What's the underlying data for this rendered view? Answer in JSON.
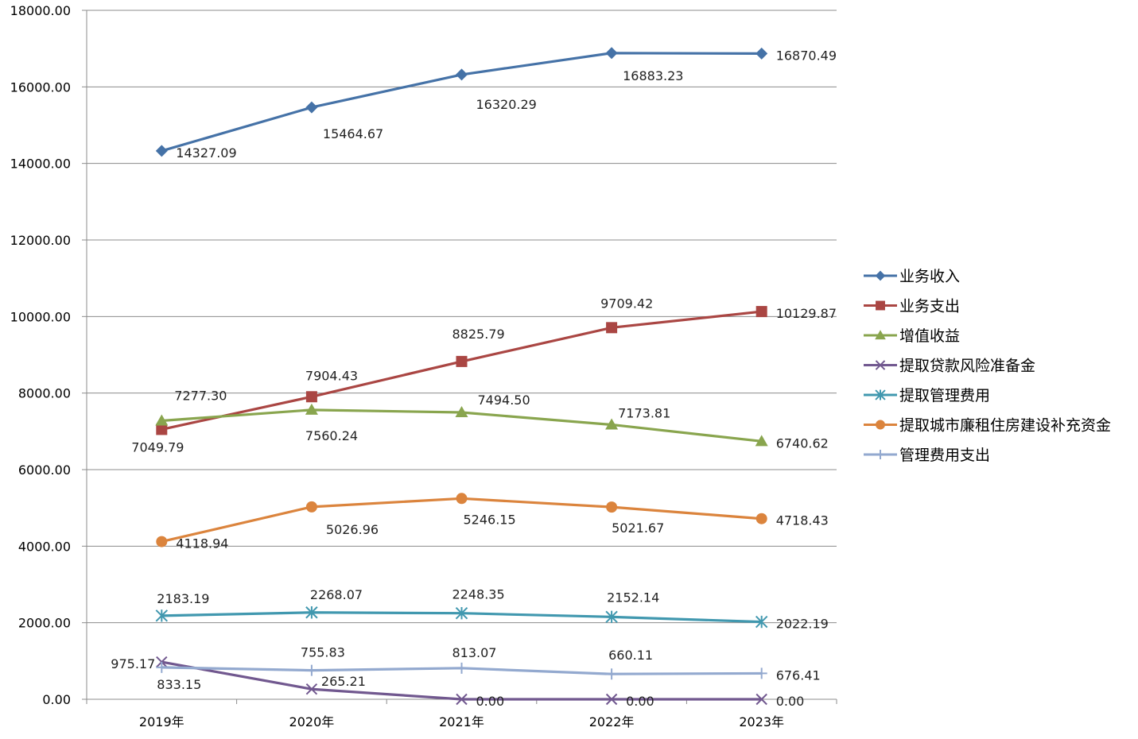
{
  "chart_data": {
    "type": "line",
    "categories": [
      "2019年",
      "2020年",
      "2021年",
      "2022年",
      "2023年"
    ],
    "ylim": [
      0,
      18000
    ],
    "yticks": [
      0,
      2000,
      4000,
      6000,
      8000,
      10000,
      12000,
      14000,
      16000,
      18000
    ],
    "ytick_labels": [
      "0.00",
      "2000.00",
      "4000.00",
      "6000.00",
      "8000.00",
      "10000.00",
      "12000.00",
      "14000.00",
      "16000.00",
      "18000.00"
    ],
    "grid": "horizontal",
    "legend_position": "right",
    "series": [
      {
        "name": "业务收入",
        "color": "#4572A7",
        "marker": "diamond",
        "values": [
          14327.09,
          15464.67,
          16320.29,
          16883.23,
          16870.49
        ],
        "labels": [
          "14327.09",
          "15464.67",
          "16320.29",
          "16883.23",
          "16870.49"
        ]
      },
      {
        "name": "业务支出",
        "color": "#AA4643",
        "marker": "square",
        "values": [
          7049.79,
          7904.43,
          8825.79,
          9709.42,
          10129.87
        ],
        "labels": [
          "7049.79",
          "7904.43",
          "8825.79",
          "9709.42",
          "10129.87"
        ]
      },
      {
        "name": "增值收益",
        "color": "#89A54E",
        "marker": "triangle",
        "values": [
          7277.3,
          7560.24,
          7494.5,
          7173.81,
          6740.62
        ],
        "labels": [
          "7277.30",
          "7560.24",
          "7494.50",
          "7173.81",
          "6740.62"
        ]
      },
      {
        "name": "提取贷款风险准备金",
        "color": "#71588F",
        "marker": "x",
        "values": [
          975.17,
          265.21,
          0.0,
          0.0,
          0.0
        ],
        "labels": [
          "975.17",
          "265.21",
          "0.00",
          "0.00",
          "0.00"
        ]
      },
      {
        "name": "提取管理费用",
        "color": "#4198AF",
        "marker": "star",
        "values": [
          2183.19,
          2268.07,
          2248.35,
          2152.14,
          2022.19
        ],
        "labels": [
          "2183.19",
          "2268.07",
          "2248.35",
          "2152.14",
          "2022.19"
        ]
      },
      {
        "name": "提取城市廉租住房建设补充资金",
        "color": "#DB843D",
        "marker": "circle",
        "values": [
          4118.94,
          5026.96,
          5246.15,
          5021.67,
          4718.43
        ],
        "labels": [
          "4118.94",
          "5026.96",
          "5246.15",
          "5021.67",
          "4718.43"
        ]
      },
      {
        "name": "管理费用支出",
        "color": "#93A9CF",
        "marker": "plus",
        "values": [
          833.15,
          755.83,
          813.07,
          660.11,
          676.41
        ],
        "labels": [
          "833.15",
          "755.83",
          "813.07",
          "660.11",
          "676.41"
        ]
      }
    ]
  }
}
